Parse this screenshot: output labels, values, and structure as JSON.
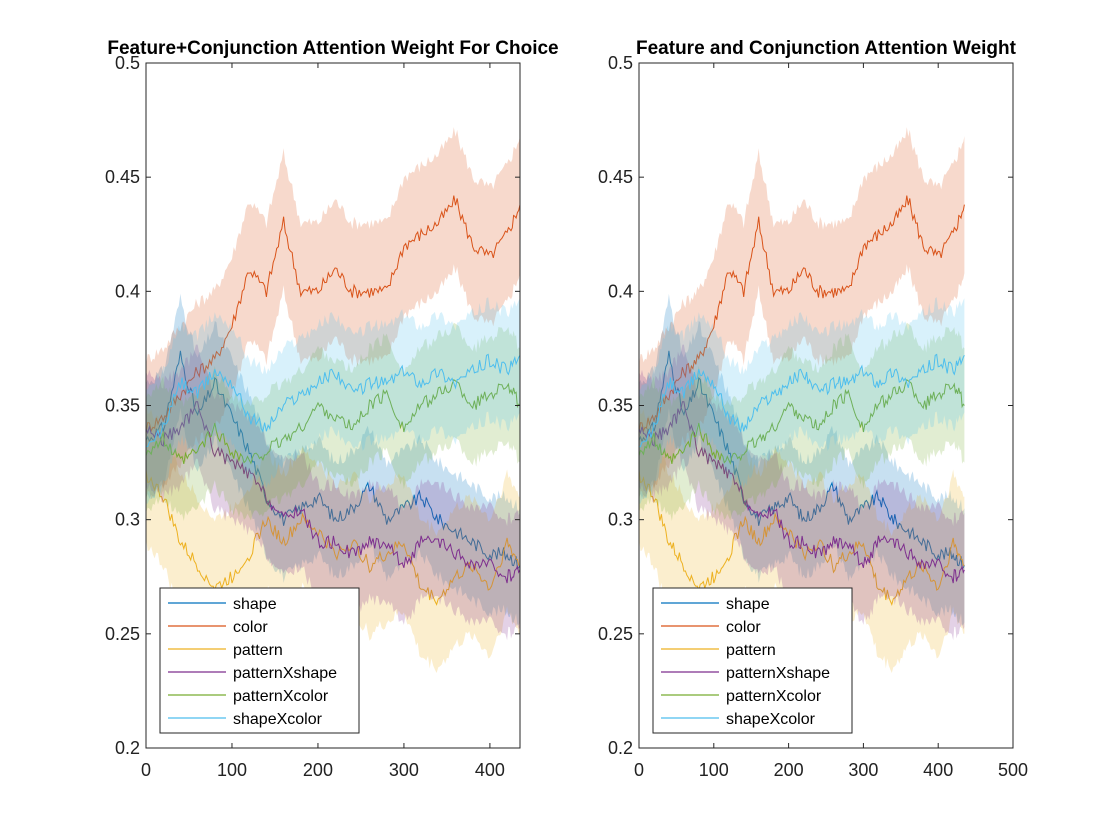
{
  "chart_data": [
    {
      "type": "line",
      "title": "Feature+Conjunction Attention Weight For Choice",
      "xlabel": "",
      "ylabel": "",
      "xlim": [
        0,
        435
      ],
      "ylim": [
        0.2,
        0.5
      ],
      "xticks": [
        0,
        100,
        200,
        300,
        400
      ],
      "yticks": [
        0.2,
        0.25,
        0.3,
        0.35,
        0.4,
        0.45,
        0.5
      ],
      "grid": false,
      "legend_position": "bottom-left",
      "shaded_band": true,
      "x": [
        0,
        20,
        40,
        60,
        80,
        100,
        120,
        140,
        160,
        180,
        200,
        220,
        240,
        260,
        280,
        300,
        320,
        340,
        360,
        380,
        400,
        420,
        435
      ],
      "series": [
        {
          "name": "shape",
          "color": "#0072BD",
          "band": 0.025,
          "values": [
            0.335,
            0.34,
            0.372,
            0.345,
            0.36,
            0.345,
            0.33,
            0.31,
            0.3,
            0.305,
            0.31,
            0.3,
            0.305,
            0.315,
            0.3,
            0.305,
            0.31,
            0.3,
            0.295,
            0.29,
            0.285,
            0.285,
            0.28
          ]
        },
        {
          "name": "color",
          "color": "#D95319",
          "band": 0.03,
          "values": [
            0.34,
            0.345,
            0.355,
            0.365,
            0.37,
            0.385,
            0.41,
            0.4,
            0.43,
            0.4,
            0.4,
            0.41,
            0.4,
            0.4,
            0.4,
            0.42,
            0.425,
            0.43,
            0.44,
            0.42,
            0.415,
            0.425,
            0.438
          ]
        },
        {
          "name": "pattern",
          "color": "#EDB120",
          "band": 0.03,
          "values": [
            0.32,
            0.31,
            0.29,
            0.28,
            0.27,
            0.275,
            0.285,
            0.3,
            0.29,
            0.3,
            0.295,
            0.285,
            0.29,
            0.28,
            0.285,
            0.29,
            0.27,
            0.265,
            0.275,
            0.28,
            0.27,
            0.29,
            0.28
          ]
        },
        {
          "name": "patternXshape",
          "color": "#7E2F8E",
          "band": 0.025,
          "values": [
            0.34,
            0.335,
            0.34,
            0.35,
            0.33,
            0.325,
            0.32,
            0.31,
            0.3,
            0.305,
            0.29,
            0.29,
            0.285,
            0.29,
            0.29,
            0.28,
            0.29,
            0.29,
            0.285,
            0.28,
            0.28,
            0.275,
            0.278
          ]
        },
        {
          "name": "patternXcolor",
          "color": "#77AC30",
          "band": 0.025,
          "values": [
            0.33,
            0.335,
            0.325,
            0.33,
            0.34,
            0.33,
            0.325,
            0.33,
            0.335,
            0.34,
            0.35,
            0.345,
            0.34,
            0.35,
            0.355,
            0.34,
            0.35,
            0.355,
            0.36,
            0.35,
            0.355,
            0.36,
            0.35
          ]
        },
        {
          "name": "shapeXcolor",
          "color": "#4DBEEE",
          "band": 0.025,
          "values": [
            0.33,
            0.34,
            0.36,
            0.355,
            0.365,
            0.36,
            0.345,
            0.34,
            0.35,
            0.355,
            0.36,
            0.365,
            0.355,
            0.36,
            0.36,
            0.365,
            0.36,
            0.365,
            0.36,
            0.365,
            0.37,
            0.365,
            0.372
          ]
        }
      ]
    },
    {
      "type": "line",
      "title": "Feature and Conjunction Attention Weight",
      "xlabel": "",
      "ylabel": "",
      "xlim": [
        0,
        500
      ],
      "ylim": [
        0.2,
        0.5
      ],
      "xticks": [
        0,
        100,
        200,
        300,
        400,
        500
      ],
      "yticks": [
        0.2,
        0.25,
        0.3,
        0.35,
        0.4,
        0.45,
        0.5
      ],
      "grid": false,
      "legend_position": "bottom-left",
      "shaded_band": true,
      "x": [
        0,
        20,
        40,
        60,
        80,
        100,
        120,
        140,
        160,
        180,
        200,
        220,
        240,
        260,
        280,
        300,
        320,
        340,
        360,
        380,
        400,
        420,
        435
      ],
      "series": [
        {
          "name": "shape",
          "color": "#0072BD",
          "band": 0.025,
          "values": [
            0.335,
            0.34,
            0.372,
            0.345,
            0.36,
            0.345,
            0.33,
            0.31,
            0.3,
            0.305,
            0.31,
            0.3,
            0.305,
            0.315,
            0.3,
            0.305,
            0.31,
            0.3,
            0.295,
            0.29,
            0.285,
            0.285,
            0.28
          ]
        },
        {
          "name": "color",
          "color": "#D95319",
          "band": 0.03,
          "values": [
            0.34,
            0.345,
            0.355,
            0.365,
            0.37,
            0.385,
            0.41,
            0.4,
            0.43,
            0.4,
            0.4,
            0.41,
            0.4,
            0.4,
            0.4,
            0.42,
            0.425,
            0.43,
            0.44,
            0.42,
            0.415,
            0.425,
            0.438
          ]
        },
        {
          "name": "pattern",
          "color": "#EDB120",
          "band": 0.03,
          "values": [
            0.32,
            0.31,
            0.29,
            0.28,
            0.27,
            0.275,
            0.285,
            0.3,
            0.29,
            0.3,
            0.295,
            0.285,
            0.29,
            0.28,
            0.285,
            0.29,
            0.27,
            0.265,
            0.275,
            0.28,
            0.27,
            0.29,
            0.28
          ]
        },
        {
          "name": "patternXshape",
          "color": "#7E2F8E",
          "band": 0.025,
          "values": [
            0.34,
            0.335,
            0.34,
            0.35,
            0.33,
            0.325,
            0.32,
            0.31,
            0.3,
            0.305,
            0.29,
            0.29,
            0.285,
            0.29,
            0.29,
            0.28,
            0.29,
            0.29,
            0.285,
            0.28,
            0.28,
            0.275,
            0.278
          ]
        },
        {
          "name": "patternXcolor",
          "color": "#77AC30",
          "band": 0.025,
          "values": [
            0.33,
            0.335,
            0.325,
            0.33,
            0.34,
            0.33,
            0.325,
            0.33,
            0.335,
            0.34,
            0.35,
            0.345,
            0.34,
            0.35,
            0.355,
            0.34,
            0.35,
            0.355,
            0.36,
            0.35,
            0.355,
            0.36,
            0.35
          ]
        },
        {
          "name": "shapeXcolor",
          "color": "#4DBEEE",
          "band": 0.025,
          "values": [
            0.33,
            0.34,
            0.36,
            0.355,
            0.365,
            0.36,
            0.345,
            0.34,
            0.35,
            0.355,
            0.36,
            0.365,
            0.355,
            0.36,
            0.36,
            0.365,
            0.36,
            0.365,
            0.36,
            0.365,
            0.37,
            0.365,
            0.372
          ]
        }
      ]
    }
  ]
}
